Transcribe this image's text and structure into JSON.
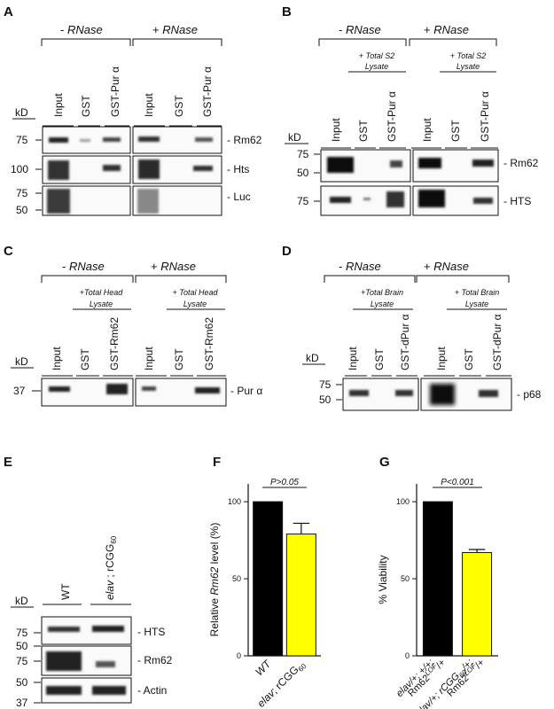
{
  "panels": {
    "A": {
      "letter": "A",
      "conditions": [
        {
          "sign": "- ",
          "name": "RNase"
        },
        {
          "sign": "+ ",
          "name": "RNase"
        }
      ],
      "lanes": [
        "Input",
        "GST",
        "GST-Pur α",
        "Input",
        "GST",
        "GST-Pur α"
      ],
      "kd_label": "kD",
      "rows": [
        {
          "marker": "75",
          "target": "- Rm62"
        },
        {
          "marker": "100",
          "target": "- Hts"
        },
        {
          "marker": "75",
          "marker2": "50",
          "target": "- Luc"
        }
      ]
    },
    "B": {
      "letter": "B",
      "conditions": [
        {
          "sign": "- ",
          "name": "RNase"
        },
        {
          "sign": "+ ",
          "name": "RNase"
        }
      ],
      "lysate": [
        "+ Total S2",
        "Lysate"
      ],
      "lanes": [
        "Input",
        "GST",
        "GST-Pur α",
        "Input",
        "GST",
        "GST-Pur α"
      ],
      "kd_label": "kD",
      "rows": [
        {
          "marker": "75",
          "marker2": "50",
          "target": "- Rm62"
        },
        {
          "marker": "75",
          "target": "- HTS"
        }
      ]
    },
    "C": {
      "letter": "C",
      "conditions": [
        {
          "sign": "- ",
          "name": "RNase"
        },
        {
          "sign": "+ ",
          "name": "RNase"
        }
      ],
      "lysate_a": [
        "+Total Head",
        "Lysate"
      ],
      "lysate_b": [
        "+ Total Head",
        "Lysate"
      ],
      "lanes": [
        "Input",
        "GST",
        "GST-Rm62",
        "Input",
        "GST",
        "GST-Rm62"
      ],
      "kd_label": "kD",
      "rows": [
        {
          "marker": "37",
          "target": "- Pur α"
        }
      ]
    },
    "D": {
      "letter": "D",
      "conditions": [
        {
          "sign": "- ",
          "name": "RNase"
        },
        {
          "sign": "+ ",
          "name": "RNase"
        }
      ],
      "lysate_a": [
        "+Total Brain",
        "Lysate"
      ],
      "lysate_b": [
        "+ Total Brain",
        "Lysate"
      ],
      "lanes": [
        "Input",
        "GST",
        "GST-dPur α",
        "Input",
        "GST",
        "GST-dPur α"
      ],
      "kd_label": "kD",
      "rows": [
        {
          "marker": "75",
          "marker2": "50",
          "target": "- p68"
        }
      ]
    },
    "E": {
      "letter": "E",
      "lanes": [
        "WT"
      ],
      "lane2_italic": "elav",
      "lane2_rest": " ; rCGG",
      "lane2_sub": "60",
      "kd_label": "kD",
      "rows": [
        {
          "marker": "75",
          "marker2": "50",
          "target": "- HTS"
        },
        {
          "marker": "75",
          "marker2": "50",
          "target": "- Rm62"
        },
        {
          "marker": "50",
          "marker2": "37",
          "target": "- Actin"
        }
      ]
    },
    "F": {
      "letter": "F"
    },
    "G": {
      "letter": "G"
    }
  },
  "chart_data": [
    {
      "type": "bar",
      "panel": "F",
      "categories": [
        "WT",
        "elav; rCGG60"
      ],
      "values": [
        100,
        79
      ],
      "errors": [
        0,
        7
      ],
      "colors": [
        "#000000",
        "#ffff00"
      ],
      "ylabel_pre": "Relative ",
      "ylabel_italic": "Rm62",
      "ylabel_post": " level (%)",
      "ylim": [
        0,
        115
      ],
      "yticks": [
        "0",
        "50",
        "100"
      ],
      "significance": "P>0.05",
      "xtick_labels": [
        {
          "italic": "WT",
          "rest": "",
          "sub": ""
        },
        {
          "italic": "elav",
          "rest": "; rCGG",
          "sub": "60"
        }
      ]
    },
    {
      "type": "bar",
      "panel": "G",
      "categories": [
        "elav/+; +/+; Rm62LOF/+",
        "elav/+; rCGG60/+; Rm62LOF/+"
      ],
      "values": [
        100,
        67
      ],
      "errors": [
        0,
        2
      ],
      "colors": [
        "#000000",
        "#ffff00"
      ],
      "ylabel": "% Viability",
      "ylim": [
        0,
        115
      ],
      "yticks": [
        "0",
        "50",
        "100"
      ],
      "significance": "P<0.001",
      "xtick_labels": [
        {
          "line1": "elav/+; +/+;",
          "line2a": "Rm62",
          "line2sup": "LOF",
          "line2b": "/+"
        },
        {
          "line1a": "elav/+; rCGG",
          "line1sub": "60",
          "line1b": "/+;",
          "line2a": "Rm62",
          "line2sup": "LOF",
          "line2b": "/+"
        }
      ]
    }
  ]
}
